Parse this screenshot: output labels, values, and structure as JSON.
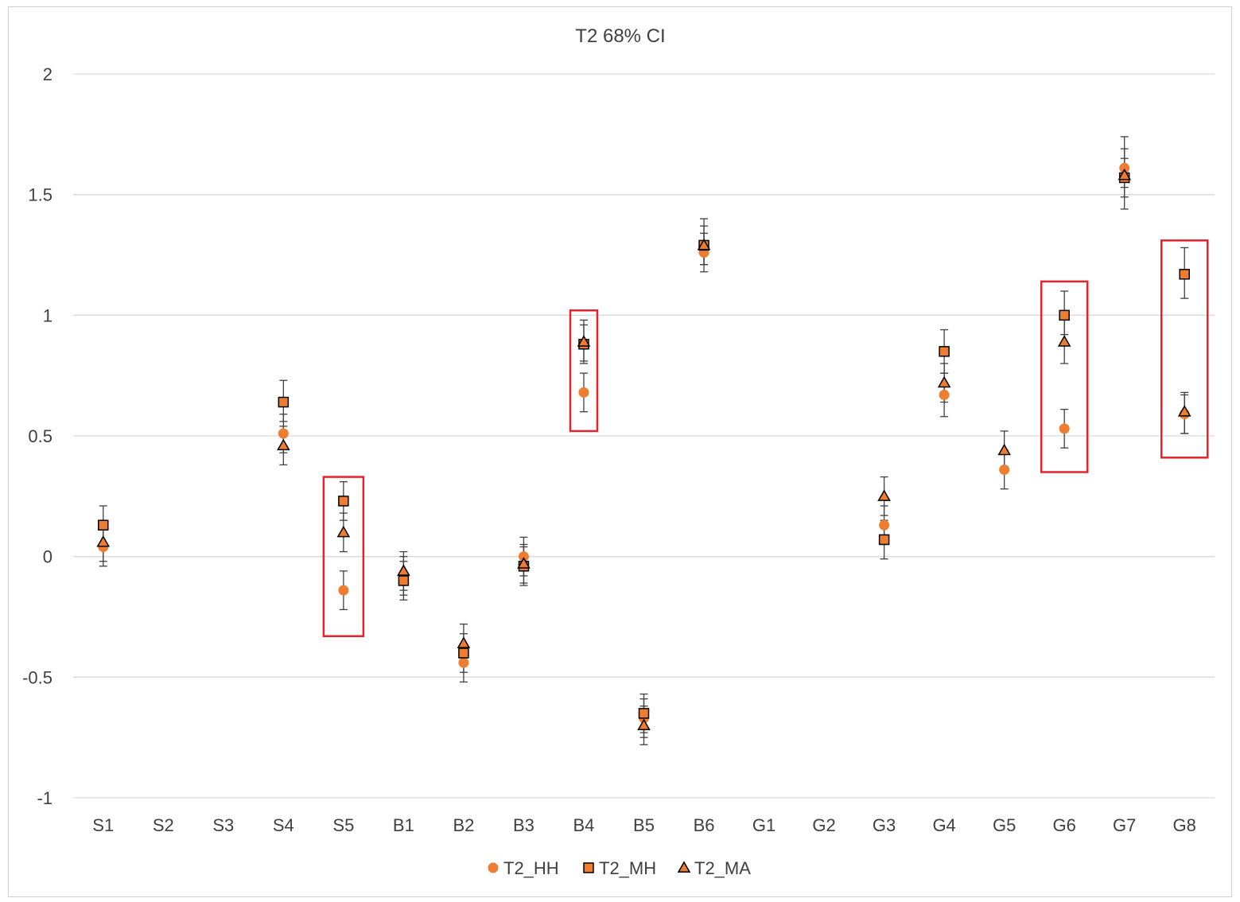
{
  "chart_data": {
    "type": "scatter",
    "title": "T2 68% CI",
    "xlabel": "",
    "ylabel": "",
    "categories": [
      "S1",
      "S2",
      "S3",
      "S4",
      "S5",
      "B1",
      "B2",
      "B3",
      "B4",
      "B5",
      "B6",
      "G1",
      "G2",
      "G3",
      "G4",
      "G5",
      "G6",
      "G7",
      "G8"
    ],
    "ylim": [
      -1,
      2
    ],
    "yticks": [
      -1,
      -0.5,
      0,
      0.5,
      1,
      1.5,
      2
    ],
    "ytick_labels": [
      "-1",
      "-0.5",
      "0",
      "0.5",
      "1",
      "1.5",
      "2"
    ],
    "grid": true,
    "legend_position": "bottom",
    "series": [
      {
        "name": "T2_HH",
        "marker": "circle",
        "color": "#ED7D31",
        "values": [
          0.04,
          null,
          null,
          0.51,
          -0.14,
          -0.08,
          -0.44,
          0.0,
          0.68,
          -0.67,
          1.26,
          null,
          null,
          0.13,
          0.67,
          0.36,
          0.53,
          1.61,
          0.59
        ],
        "err_low": [
          -0.04,
          null,
          null,
          0.43,
          -0.22,
          -0.16,
          -0.52,
          -0.08,
          0.6,
          -0.75,
          1.18,
          null,
          null,
          0.05,
          0.58,
          0.28,
          0.45,
          1.53,
          0.51
        ],
        "err_high": [
          0.12,
          null,
          null,
          0.59,
          -0.06,
          0.0,
          -0.36,
          0.08,
          0.76,
          -0.59,
          1.34,
          null,
          null,
          0.21,
          0.76,
          0.44,
          0.61,
          1.69,
          0.67
        ]
      },
      {
        "name": "T2_MH",
        "marker": "square",
        "color": "#ED7D31",
        "values": [
          0.13,
          null,
          null,
          0.64,
          0.23,
          -0.1,
          -0.4,
          -0.04,
          0.88,
          -0.65,
          1.29,
          null,
          null,
          0.07,
          0.85,
          null,
          1.0,
          1.57,
          1.17
        ],
        "err_low": [
          0.05,
          null,
          null,
          0.56,
          0.15,
          -0.18,
          -0.48,
          -0.12,
          0.8,
          -0.73,
          1.21,
          null,
          null,
          -0.01,
          0.76,
          null,
          0.92,
          1.49,
          1.07
        ],
        "err_high": [
          0.21,
          null,
          null,
          0.73,
          0.31,
          -0.02,
          -0.32,
          0.04,
          0.96,
          -0.57,
          1.37,
          null,
          null,
          0.15,
          0.94,
          null,
          1.1,
          1.65,
          1.28
        ]
      },
      {
        "name": "T2_MA",
        "marker": "triangle",
        "color": "#ED7D31",
        "values": [
          0.06,
          null,
          null,
          0.46,
          0.1,
          -0.06,
          -0.36,
          -0.03,
          0.89,
          -0.7,
          1.29,
          null,
          null,
          0.25,
          0.72,
          0.44,
          0.89,
          1.58,
          0.6
        ],
        "err_low": [
          -0.02,
          null,
          null,
          0.38,
          0.02,
          -0.14,
          -0.44,
          -0.11,
          0.81,
          -0.78,
          1.21,
          null,
          null,
          0.17,
          0.64,
          0.36,
          0.8,
          1.44,
          0.51
        ],
        "err_high": [
          0.14,
          null,
          null,
          0.54,
          0.18,
          0.02,
          -0.28,
          0.05,
          0.98,
          -0.62,
          1.4,
          null,
          null,
          0.33,
          0.8,
          0.52,
          0.98,
          1.74,
          0.68
        ]
      }
    ],
    "highlight_boxes": [
      {
        "category": "S5",
        "y_range": [
          -0.33,
          0.33
        ]
      },
      {
        "category": "B4",
        "y_range": [
          0.52,
          1.02
        ]
      },
      {
        "category": "G6",
        "y_range": [
          0.35,
          1.14
        ]
      },
      {
        "category": "G8",
        "y_range": [
          0.41,
          1.31
        ]
      }
    ],
    "highlight_color": "#E8222A"
  }
}
